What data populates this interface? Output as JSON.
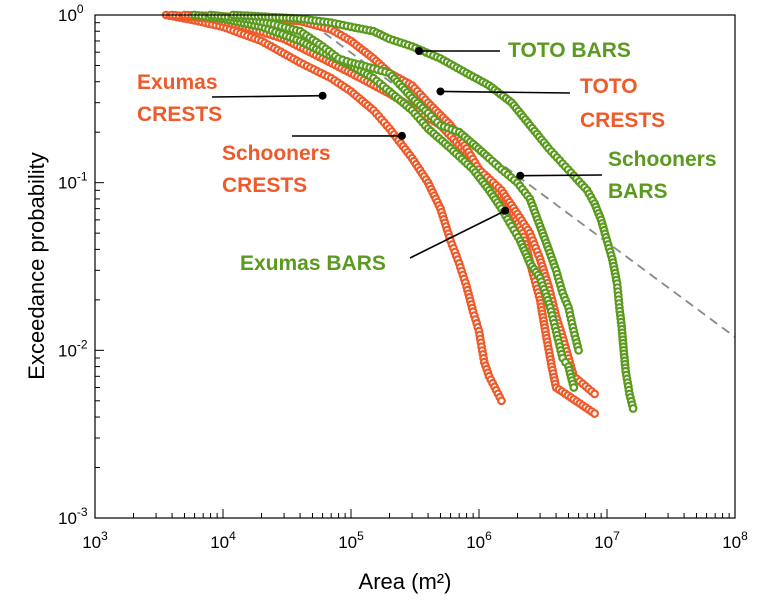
{
  "chart_data": {
    "type": "scatter",
    "xlabel": "Area (m²)",
    "ylabel": "Exceedance probability",
    "x_scale": "log",
    "y_scale": "log",
    "xlim": [
      1000,
      100000000
    ],
    "ylim": [
      0.001,
      1
    ],
    "x_ticks": [
      {
        "value": 1000,
        "base": "10",
        "exp": "3"
      },
      {
        "value": 10000,
        "base": "10",
        "exp": "4"
      },
      {
        "value": 100000,
        "base": "10",
        "exp": "5"
      },
      {
        "value": 1000000,
        "base": "10",
        "exp": "6"
      },
      {
        "value": 10000000,
        "base": "10",
        "exp": "7"
      },
      {
        "value": 100000000,
        "base": "10",
        "exp": "8"
      }
    ],
    "y_ticks": [
      {
        "value": 1,
        "base": "10",
        "exp": "0"
      },
      {
        "value": 0.1,
        "base": "10",
        "exp": "-1"
      },
      {
        "value": 0.01,
        "base": "10",
        "exp": "-2"
      },
      {
        "value": 0.001,
        "base": "10",
        "exp": "-3"
      }
    ],
    "grid": false,
    "colors": {
      "CRESTS": "#ee5a2a",
      "BARS": "#5a9a1e",
      "reference": "#888888"
    },
    "series": [
      {
        "name": "Exumas CRESTS",
        "color": "#ee5a2a",
        "points": [
          [
            3600,
            1
          ],
          [
            6000,
            0.93
          ],
          [
            10000,
            0.85
          ],
          [
            20000,
            0.7
          ],
          [
            40000,
            0.52
          ],
          [
            70000,
            0.42
          ],
          [
            100000,
            0.35
          ],
          [
            150000,
            0.27
          ],
          [
            200000,
            0.21
          ],
          [
            300000,
            0.14
          ],
          [
            400000,
            0.1
          ],
          [
            500000,
            0.07
          ],
          [
            600000,
            0.045
          ],
          [
            700000,
            0.033
          ],
          [
            800000,
            0.024
          ],
          [
            900000,
            0.017
          ],
          [
            1000000,
            0.013
          ],
          [
            1100000,
            0.0085
          ],
          [
            1200000,
            0.007
          ],
          [
            1500000,
            0.005
          ]
        ]
      },
      {
        "name": "Schooners CRESTS",
        "color": "#ee5a2a",
        "points": [
          [
            4000,
            1
          ],
          [
            8000,
            0.95
          ],
          [
            15000,
            0.85
          ],
          [
            30000,
            0.72
          ],
          [
            60000,
            0.55
          ],
          [
            100000,
            0.45
          ],
          [
            200000,
            0.34
          ],
          [
            300000,
            0.28
          ],
          [
            500000,
            0.22
          ],
          [
            800000,
            0.15
          ],
          [
            1200000,
            0.1
          ],
          [
            1700000,
            0.075
          ],
          [
            2200000,
            0.05
          ],
          [
            2600000,
            0.03
          ],
          [
            3000000,
            0.02
          ],
          [
            3300000,
            0.013
          ],
          [
            3700000,
            0.008
          ],
          [
            4000000,
            0.006
          ],
          [
            8000000,
            0.0042
          ]
        ]
      },
      {
        "name": "TOTO CRESTS",
        "color": "#ee5a2a",
        "points": [
          [
            5000,
            1
          ],
          [
            10000,
            0.98
          ],
          [
            20000,
            0.95
          ],
          [
            40000,
            0.92
          ],
          [
            70000,
            0.82
          ],
          [
            100000,
            0.7
          ],
          [
            150000,
            0.55
          ],
          [
            200000,
            0.45
          ],
          [
            300000,
            0.38
          ],
          [
            400000,
            0.3
          ],
          [
            600000,
            0.22
          ],
          [
            800000,
            0.16
          ],
          [
            1000000,
            0.12
          ],
          [
            1500000,
            0.09
          ],
          [
            2000000,
            0.065
          ],
          [
            2500000,
            0.05
          ],
          [
            3000000,
            0.035
          ],
          [
            3500000,
            0.024
          ],
          [
            4000000,
            0.016
          ],
          [
            4500000,
            0.012
          ],
          [
            5500000,
            0.007
          ],
          [
            8000000,
            0.0055
          ]
        ]
      },
      {
        "name": "Exumas BARS",
        "color": "#5a9a1e",
        "points": [
          [
            6000,
            1
          ],
          [
            10000,
            0.95
          ],
          [
            20000,
            0.85
          ],
          [
            40000,
            0.7
          ],
          [
            60000,
            0.6
          ],
          [
            100000,
            0.5
          ],
          [
            150000,
            0.42
          ],
          [
            200000,
            0.35
          ],
          [
            300000,
            0.27
          ],
          [
            400000,
            0.21
          ],
          [
            600000,
            0.16
          ],
          [
            900000,
            0.12
          ],
          [
            1200000,
            0.09
          ],
          [
            1500000,
            0.07
          ],
          [
            1800000,
            0.055
          ],
          [
            2100000,
            0.045
          ],
          [
            2500000,
            0.033
          ],
          [
            3000000,
            0.027
          ],
          [
            3300000,
            0.022
          ],
          [
            3600000,
            0.018
          ],
          [
            4000000,
            0.013
          ],
          [
            4500000,
            0.009
          ],
          [
            5000000,
            0.008
          ],
          [
            5500000,
            0.006
          ]
        ]
      },
      {
        "name": "Schooners BARS",
        "color": "#5a9a1e",
        "points": [
          [
            8000,
            1
          ],
          [
            15000,
            0.95
          ],
          [
            25000,
            0.88
          ],
          [
            40000,
            0.8
          ],
          [
            60000,
            0.65
          ],
          [
            80000,
            0.55
          ],
          [
            100000,
            0.52
          ],
          [
            150000,
            0.48
          ],
          [
            200000,
            0.45
          ],
          [
            300000,
            0.32
          ],
          [
            400000,
            0.26
          ],
          [
            500000,
            0.22
          ],
          [
            700000,
            0.2
          ],
          [
            900000,
            0.17
          ],
          [
            1200000,
            0.14
          ],
          [
            1500000,
            0.12
          ],
          [
            2000000,
            0.1
          ],
          [
            2500000,
            0.08
          ],
          [
            3000000,
            0.055
          ],
          [
            3500000,
            0.04
          ],
          [
            4000000,
            0.03
          ],
          [
            4500000,
            0.022
          ],
          [
            5000000,
            0.018
          ],
          [
            5500000,
            0.013
          ],
          [
            6000000,
            0.01
          ]
        ]
      },
      {
        "name": "TOTO BARS",
        "color": "#5a9a1e",
        "points": [
          [
            12000,
            1
          ],
          [
            20000,
            0.98
          ],
          [
            40000,
            0.95
          ],
          [
            70000,
            0.9
          ],
          [
            100000,
            0.85
          ],
          [
            150000,
            0.8
          ],
          [
            200000,
            0.72
          ],
          [
            300000,
            0.65
          ],
          [
            500000,
            0.55
          ],
          [
            800000,
            0.45
          ],
          [
            1200000,
            0.38
          ],
          [
            1800000,
            0.3
          ],
          [
            2500000,
            0.22
          ],
          [
            3500000,
            0.16
          ],
          [
            4500000,
            0.13
          ],
          [
            5500000,
            0.11
          ],
          [
            7000000,
            0.09
          ],
          [
            8000000,
            0.075
          ],
          [
            9000000,
            0.06
          ],
          [
            10000000,
            0.045
          ],
          [
            11000000,
            0.035
          ],
          [
            12000000,
            0.025
          ],
          [
            12500000,
            0.018
          ],
          [
            13000000,
            0.014
          ],
          [
            13500000,
            0.01
          ],
          [
            14000000,
            0.0075
          ],
          [
            15000000,
            0.0055
          ],
          [
            16000000,
            0.0045
          ]
        ]
      }
    ],
    "reference_line": {
      "style": "dashed",
      "points": [
        [
          40000,
          1
        ],
        [
          100000000,
          0.012
        ]
      ]
    },
    "annotations": [
      {
        "name": "TOTO BARS",
        "lines": [
          "TOTO BARS"
        ],
        "color": "#5a9a1e",
        "point": [
          340000,
          0.61
        ]
      },
      {
        "name": "TOTO CRESTS",
        "lines": [
          "TOTO",
          "CRESTS"
        ],
        "color": "#ee5a2a",
        "point": [
          500000,
          0.35
        ]
      },
      {
        "name": "Exumas CRESTS",
        "lines": [
          "Exumas",
          "CRESTS"
        ],
        "color": "#ee5a2a",
        "point": [
          60000,
          0.33
        ]
      },
      {
        "name": "Schooners CRESTS",
        "lines": [
          "Schooners",
          "CRESTS"
        ],
        "color": "#ee5a2a",
        "point": [
          250000,
          0.19
        ]
      },
      {
        "name": "Schooners BARS",
        "lines": [
          "Schooners",
          "BARS"
        ],
        "color": "#5a9a1e",
        "point": [
          2100000,
          0.11
        ]
      },
      {
        "name": "Exumas BARS",
        "lines": [
          "Exumas BARS"
        ],
        "color": "#5a9a1e",
        "point": [
          1600000,
          0.068
        ]
      }
    ]
  }
}
